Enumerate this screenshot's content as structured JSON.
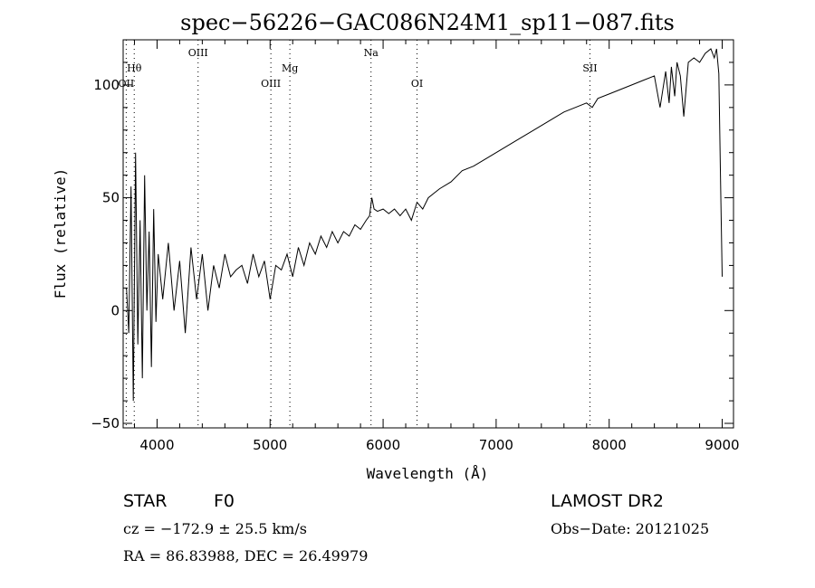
{
  "chart_data": {
    "type": "line",
    "title": "spec−56226−GAC086N24M1_sp11−087.fits",
    "xlabel": "Wavelength (Å)",
    "ylabel": "Flux (relative)",
    "xlim": [
      3700,
      9100
    ],
    "ylim": [
      -52,
      120
    ],
    "xticks": [
      4000,
      5000,
      6000,
      7000,
      8000,
      9000
    ],
    "yticks": [
      -50,
      0,
      50,
      100
    ],
    "ytick_labels": [
      "−50",
      "0",
      "50",
      "100"
    ],
    "grid": false,
    "series": [
      {
        "x": [
          3730,
          3750,
          3770,
          3790,
          3810,
          3830,
          3850,
          3870,
          3890,
          3910,
          3930,
          3950,
          3970,
          3990,
          4010,
          4050,
          4100,
          4150,
          4200,
          4250,
          4300,
          4350,
          4400,
          4450,
          4500,
          4550,
          4600,
          4650,
          4700,
          4750,
          4800,
          4850,
          4900,
          4950,
          5000,
          5050,
          5100,
          5150,
          5200,
          5250,
          5300,
          5350,
          5400,
          5450,
          5500,
          5550,
          5600,
          5650,
          5700,
          5750,
          5800,
          5850,
          5880,
          5900,
          5920,
          5950,
          6000,
          6050,
          6100,
          6150,
          6200,
          6250,
          6300,
          6350,
          6400,
          6450,
          6500,
          6600,
          6700,
          6800,
          6900,
          7000,
          7100,
          7200,
          7300,
          7400,
          7500,
          7600,
          7700,
          7800,
          7850,
          7900,
          8000,
          8100,
          8200,
          8300,
          8400,
          8450,
          8500,
          8530,
          8550,
          8580,
          8600,
          8630,
          8660,
          8700,
          8750,
          8800,
          8850,
          8900,
          8930,
          8950,
          8970,
          8985,
          9000
        ],
        "y": [
          10,
          -10,
          55,
          -40,
          70,
          -15,
          40,
          -30,
          60,
          0,
          35,
          -25,
          45,
          -5,
          25,
          5,
          30,
          0,
          22,
          -10,
          28,
          5,
          25,
          0,
          20,
          10,
          25,
          15,
          18,
          20,
          12,
          25,
          15,
          22,
          5,
          20,
          18,
          25,
          15,
          28,
          20,
          30,
          25,
          33,
          28,
          35,
          30,
          35,
          33,
          38,
          36,
          40,
          42,
          50,
          45,
          44,
          45,
          43,
          45,
          42,
          45,
          40,
          48,
          45,
          50,
          52,
          54,
          57,
          62,
          64,
          67,
          70,
          73,
          76,
          79,
          82,
          85,
          88,
          90,
          92,
          90,
          94,
          96,
          98,
          100,
          102,
          104,
          90,
          106,
          92,
          108,
          95,
          110,
          104,
          86,
          110,
          112,
          110,
          114,
          116,
          112,
          116,
          105,
          60,
          15
        ]
      }
    ],
    "lines": [
      {
        "label": "Hθ",
        "x": 3798,
        "row": "mid"
      },
      {
        "label": "OII",
        "x": 3727,
        "row": "low"
      },
      {
        "label": "OIII",
        "x": 4363,
        "row": "top"
      },
      {
        "label": "OIII",
        "x": 5007,
        "row": "low"
      },
      {
        "label": "Mg",
        "x": 5175,
        "row": "mid"
      },
      {
        "label": "Na",
        "x": 5893,
        "row": "top"
      },
      {
        "label": "OI",
        "x": 6300,
        "row": "low"
      },
      {
        "label": "SII",
        "x": 7830,
        "row": "mid"
      }
    ]
  },
  "info": {
    "class": "STAR",
    "subclass": "F0",
    "survey": "LAMOST DR2",
    "cz": "cz = −172.9 ± 25.5 km/s",
    "obs_date": "Obs−Date: 20121025",
    "coords": "RA =  86.83988, DEC =  26.49979"
  }
}
